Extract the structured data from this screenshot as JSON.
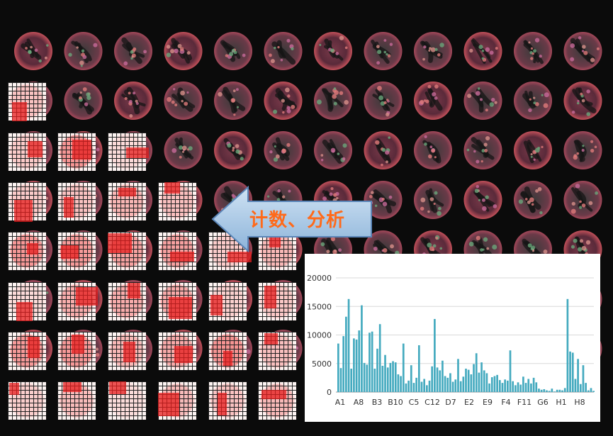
{
  "callout": {
    "label": "计数、分析"
  },
  "chart_data": {
    "type": "bar",
    "ylim": [
      0,
      20000
    ],
    "yticks": [
      "0",
      "5000",
      "10000",
      "15000",
      "20000"
    ],
    "xticks": [
      "A1",
      "A8",
      "B3",
      "B10",
      "C5",
      "C12",
      "D7",
      "E2",
      "E9",
      "F4",
      "F11",
      "G6",
      "H1",
      "H8"
    ],
    "grid": true,
    "bar_color": "#44aabf",
    "values": [
      8500,
      4200,
      9800,
      13200,
      16300,
      4100,
      9400,
      9200,
      10800,
      15200,
      5100,
      4800,
      10400,
      10600,
      4100,
      7600,
      11900,
      4600,
      6500,
      4300,
      5100,
      5400,
      5200,
      3100,
      2800,
      8500,
      1500,
      2000,
      4700,
      1600,
      2500,
      8200,
      1800,
      2300,
      1200,
      2000,
      4500,
      12800,
      4300,
      3800,
      5500,
      2800,
      2500,
      3300,
      1800,
      2200,
      5800,
      1900,
      2700,
      4100,
      3900,
      3100,
      4900,
      6800,
      3400,
      5200,
      3800,
      3300,
      1500,
      2600,
      2800,
      3000,
      2100,
      1600,
      2200,
      2000,
      7300,
      1900,
      1200,
      1700,
      1300,
      2700,
      1600,
      2300,
      1500,
      2500,
      1700,
      600,
      400,
      500,
      300,
      200,
      600,
      100,
      400,
      400,
      300,
      700,
      16300,
      7100,
      6900,
      2300,
      5800,
      1400,
      4700,
      1600,
      300,
      700,
      200
    ]
  }
}
